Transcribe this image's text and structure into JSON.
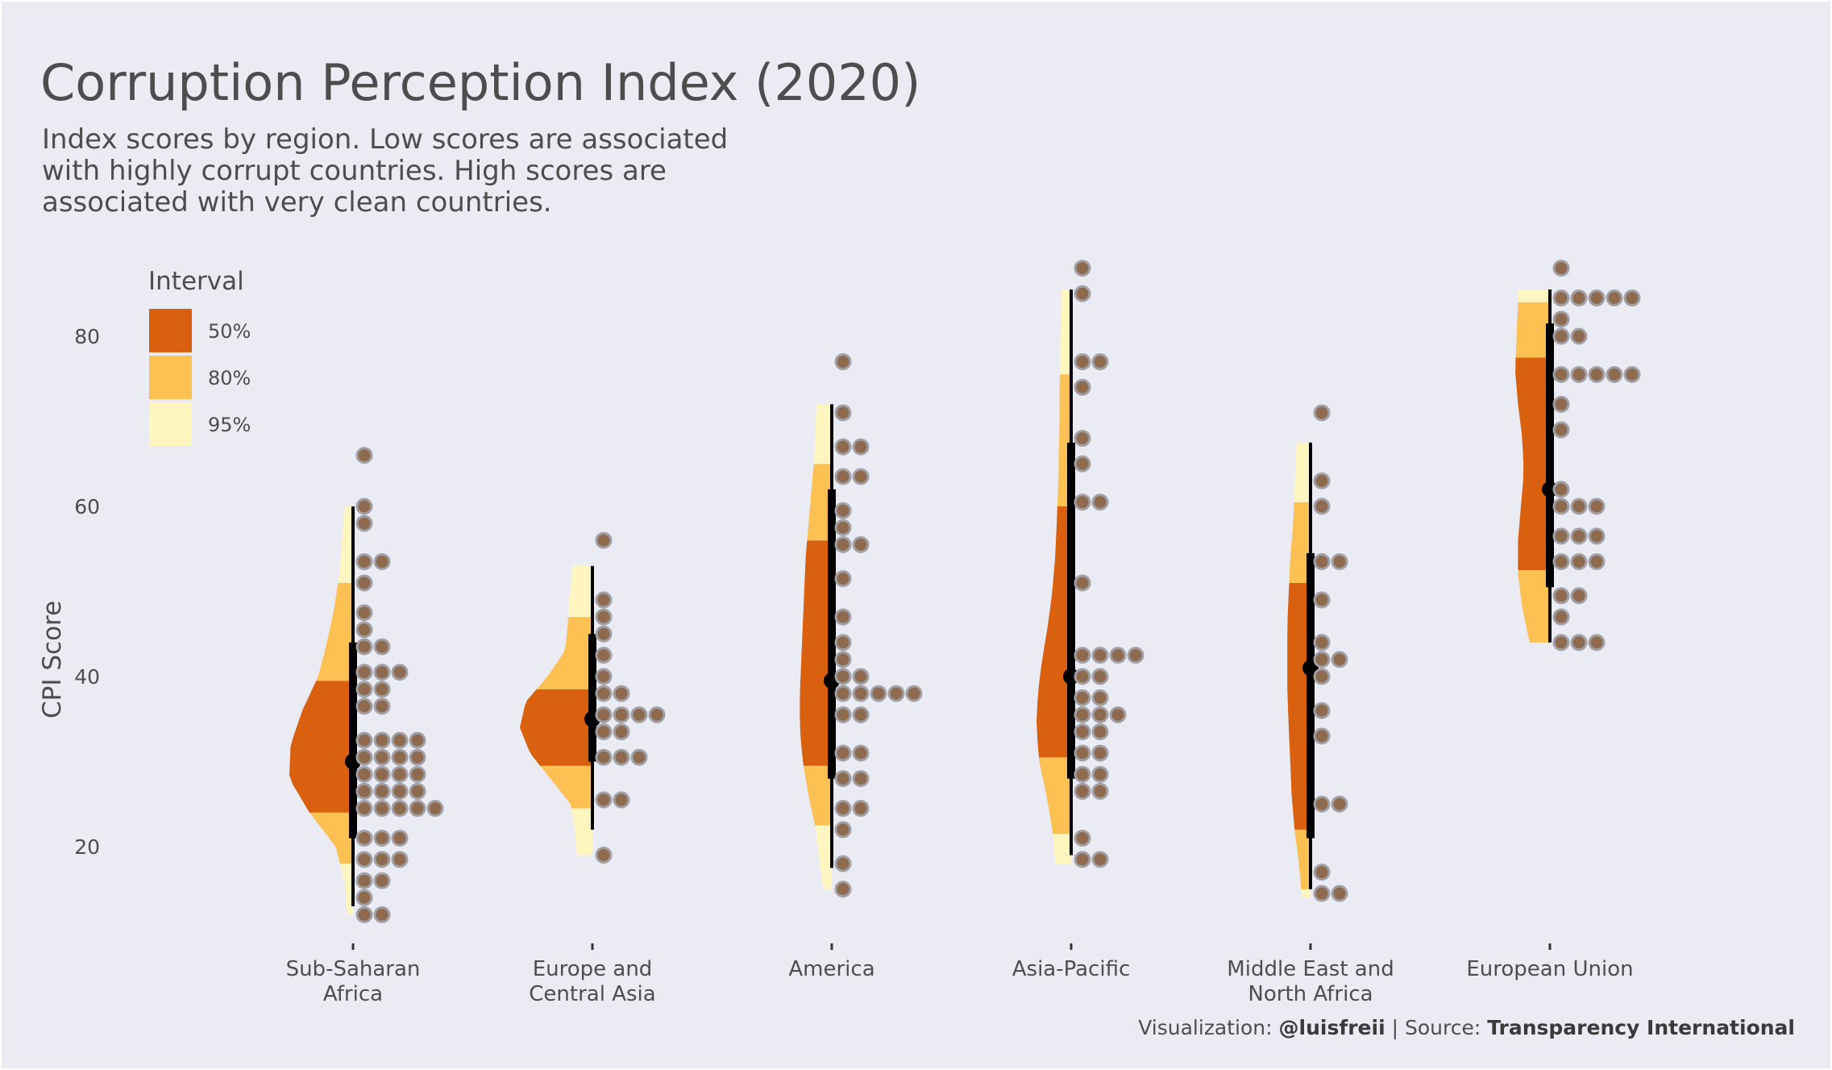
{
  "title": "Corruption Perception Index (2020)",
  "subtitle": "Index scores by region. Low scores are associated with highly corrupt countries. High scores are associated with very clean countries.",
  "caption": {
    "viz_prefix": "Visualization: ",
    "viz_author": "@luisfreii",
    "separator": " | Source: ",
    "source": "Transparency International"
  },
  "colors": {
    "background": "#ebebf4",
    "interval_50": "#d9600e",
    "interval_80": "#fdc153",
    "interval_95": "#fff5bf",
    "dot": "#8e6a4f",
    "dot_stroke": "#a0a0a6",
    "interval_line": "#000000"
  },
  "chart_data": {
    "type": "scatter",
    "ylabel": "CPI Score",
    "xlabel": "",
    "ylim": [
      8,
      89
    ],
    "yticks": [
      20,
      40,
      60,
      80
    ],
    "grid": false,
    "legend": {
      "title": "Interval",
      "placement": "top-left",
      "entries": [
        "50%",
        "80%",
        "95%"
      ]
    },
    "series": [
      {
        "category": [
          "Sub-Saharan",
          "Africa"
        ],
        "median": 30,
        "interval_50": [
          21,
          44
        ],
        "interval_95": [
          13,
          60
        ],
        "bands": [
          {
            "level": "95%",
            "range": [
              12,
              18
            ]
          },
          {
            "level": "80%",
            "range": [
              18,
              24
            ]
          },
          {
            "level": "50%",
            "range": [
              24,
              39.5
            ]
          },
          {
            "level": "80%",
            "range": [
              39.5,
              51
            ]
          },
          {
            "level": "95%",
            "range": [
              51,
              60
            ]
          }
        ],
        "density": [
          [
            12,
            8
          ],
          [
            16,
            12
          ],
          [
            20,
            24
          ],
          [
            24,
            60
          ],
          [
            28,
            88
          ],
          [
            32,
            86
          ],
          [
            36,
            70
          ],
          [
            40,
            48
          ],
          [
            44,
            36
          ],
          [
            48,
            26
          ],
          [
            52,
            19
          ],
          [
            56,
            15
          ],
          [
            60,
            12
          ]
        ],
        "scores": [
          66,
          60,
          58,
          53.5,
          53.5,
          51,
          47.5,
          45.5,
          43.5,
          43.5,
          40.5,
          40.5,
          40.5,
          38.5,
          38.5,
          36.5,
          36.5,
          32.5,
          32.5,
          32.5,
          32.5,
          30.5,
          30.5,
          30.5,
          30.5,
          28.5,
          28.5,
          28.5,
          28.5,
          26.5,
          26.5,
          26.5,
          26.5,
          24.5,
          24.5,
          24.5,
          24.5,
          24.5,
          21,
          21,
          21,
          18.5,
          18.5,
          18.5,
          16,
          16,
          14,
          12,
          12
        ]
      },
      {
        "category": [
          "Europe and",
          "Central Asia"
        ],
        "median": 35,
        "interval_50": [
          30,
          45
        ],
        "interval_95": [
          22,
          53
        ],
        "bands": [
          {
            "level": "95%",
            "range": [
              19,
              24.5
            ]
          },
          {
            "level": "80%",
            "range": [
              24.5,
              29.5
            ]
          },
          {
            "level": "50%",
            "range": [
              29.5,
              38.5
            ]
          },
          {
            "level": "80%",
            "range": [
              38.5,
              47
            ]
          },
          {
            "level": "95%",
            "range": [
              47,
              53
            ]
          }
        ],
        "density": [
          [
            19,
            22
          ],
          [
            22,
            24
          ],
          [
            25,
            30
          ],
          [
            28,
            58
          ],
          [
            31,
            86
          ],
          [
            34,
            100
          ],
          [
            37,
            92
          ],
          [
            40,
            62
          ],
          [
            43,
            38
          ],
          [
            46,
            34
          ],
          [
            49,
            32
          ],
          [
            52,
            28
          ],
          [
            53,
            27
          ]
        ],
        "scores": [
          56,
          49,
          47,
          45,
          42.5,
          40,
          38,
          38,
          35.5,
          35.5,
          35.5,
          35.5,
          33.5,
          33.5,
          30.5,
          30.5,
          30.5,
          25.5,
          25.5,
          19
        ]
      },
      {
        "category": [
          "America"
        ],
        "median": 39.5,
        "interval_50": [
          28,
          62
        ],
        "interval_95": [
          17.5,
          72
        ],
        "bands": [
          {
            "level": "95%",
            "range": [
              15,
              22.5
            ]
          },
          {
            "level": "80%",
            "range": [
              22.5,
              29.5
            ]
          },
          {
            "level": "50%",
            "range": [
              29.5,
              56
            ]
          },
          {
            "level": "80%",
            "range": [
              56,
              65
            ]
          },
          {
            "level": "95%",
            "range": [
              65,
              72
            ]
          }
        ],
        "density": [
          [
            15,
            12
          ],
          [
            18,
            16
          ],
          [
            22,
            22
          ],
          [
            26,
            32
          ],
          [
            30,
            40
          ],
          [
            34,
            44
          ],
          [
            38,
            44
          ],
          [
            42,
            42
          ],
          [
            46,
            40
          ],
          [
            50,
            38
          ],
          [
            54,
            36
          ],
          [
            58,
            32
          ],
          [
            62,
            28
          ],
          [
            66,
            24
          ],
          [
            70,
            22
          ],
          [
            72,
            21
          ]
        ],
        "scores": [
          77,
          71,
          67,
          67,
          63.5,
          63.5,
          59.5,
          57.5,
          55.5,
          55.5,
          51.5,
          47,
          44,
          42,
          40,
          40,
          38,
          38,
          38,
          38,
          38,
          35.5,
          35.5,
          31,
          31,
          28,
          28,
          24.5,
          24.5,
          22,
          18,
          15
        ]
      },
      {
        "category": [
          "Asia-Pacific"
        ],
        "median": 40,
        "interval_50": [
          28,
          67.5
        ],
        "interval_95": [
          19,
          85.5
        ],
        "bands": [
          {
            "level": "95%",
            "range": [
              18,
              21.5
            ]
          },
          {
            "level": "80%",
            "range": [
              21.5,
              30.5
            ]
          },
          {
            "level": "50%",
            "range": [
              30.5,
              60
            ]
          },
          {
            "level": "80%",
            "range": [
              60,
              75.5
            ]
          },
          {
            "level": "95%",
            "range": [
              75.5,
              85.5
            ]
          }
        ],
        "density": [
          [
            18,
            22
          ],
          [
            22,
            26
          ],
          [
            26,
            34
          ],
          [
            30,
            44
          ],
          [
            34,
            48
          ],
          [
            38,
            46
          ],
          [
            42,
            40
          ],
          [
            46,
            32
          ],
          [
            50,
            26
          ],
          [
            54,
            22
          ],
          [
            58,
            20
          ],
          [
            62,
            18
          ],
          [
            66,
            17
          ],
          [
            70,
            16
          ],
          [
            74,
            16
          ],
          [
            78,
            15
          ],
          [
            82,
            14
          ],
          [
            85.5,
            14
          ]
        ],
        "scores": [
          88,
          85,
          77,
          77,
          74,
          68,
          65,
          60.5,
          60.5,
          51,
          42.5,
          42.5,
          42.5,
          42.5,
          40,
          40,
          37.5,
          37.5,
          35.5,
          35.5,
          35.5,
          33.5,
          33.5,
          31,
          31,
          28.5,
          28.5,
          26.5,
          26.5,
          21,
          18.5,
          18.5
        ]
      },
      {
        "category": [
          "Middle East and",
          "North Africa"
        ],
        "median": 41,
        "interval_50": [
          21,
          54.5
        ],
        "interval_95": [
          15,
          67.5
        ],
        "bands": [
          {
            "level": "95%",
            "range": [
              14,
              15
            ]
          },
          {
            "level": "80%",
            "range": [
              15,
              22
            ]
          },
          {
            "level": "50%",
            "range": [
              22,
              51
            ]
          },
          {
            "level": "80%",
            "range": [
              51,
              60.5
            ]
          },
          {
            "level": "95%",
            "range": [
              60.5,
              67.5
            ]
          }
        ],
        "density": [
          [
            14,
            12
          ],
          [
            18,
            16
          ],
          [
            22,
            22
          ],
          [
            26,
            26
          ],
          [
            30,
            28
          ],
          [
            34,
            30
          ],
          [
            38,
            32
          ],
          [
            42,
            32
          ],
          [
            46,
            32
          ],
          [
            50,
            30
          ],
          [
            54,
            28
          ],
          [
            58,
            24
          ],
          [
            62,
            22
          ],
          [
            66,
            20
          ],
          [
            67.5,
            19
          ]
        ],
        "scores": [
          71,
          63,
          60,
          53.5,
          53.5,
          49,
          44,
          42,
          42,
          40,
          36,
          33,
          25,
          25,
          17,
          14.5,
          14.5
        ]
      },
      {
        "category": [
          "European Union"
        ],
        "median": 62,
        "interval_50": [
          50.5,
          81.5
        ],
        "interval_95": [
          44,
          85.5
        ],
        "bands": [
          {
            "level": "80%",
            "range": [
              44,
              52.5
            ]
          },
          {
            "level": "50%",
            "range": [
              52.5,
              77.5
            ]
          },
          {
            "level": "80%",
            "range": [
              77.5,
              84
            ]
          },
          {
            "level": "95%",
            "range": [
              84,
              85.5
            ]
          }
        ],
        "density": [
          [
            44,
            28
          ],
          [
            48,
            38
          ],
          [
            52,
            44
          ],
          [
            56,
            44
          ],
          [
            60,
            40
          ],
          [
            64,
            36
          ],
          [
            68,
            38
          ],
          [
            72,
            44
          ],
          [
            76,
            48
          ],
          [
            80,
            46
          ],
          [
            84,
            44
          ],
          [
            85.5,
            43
          ]
        ],
        "scores": [
          88,
          84.5,
          84.5,
          84.5,
          84.5,
          84.5,
          82,
          80,
          80,
          75.5,
          75.5,
          75.5,
          75.5,
          75.5,
          72,
          69,
          62,
          60,
          60,
          60,
          56.5,
          56.5,
          56.5,
          53.5,
          53.5,
          53.5,
          49.5,
          49.5,
          47,
          44,
          44,
          44
        ]
      }
    ]
  }
}
